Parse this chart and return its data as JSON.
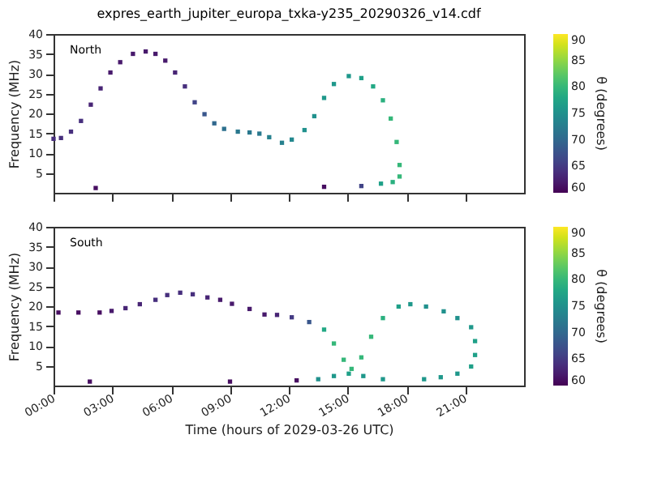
{
  "chart_data": [
    {
      "type": "scatter",
      "title": "expres_earth_jupiter_europa_txka-y235_20290326_v14.cdf",
      "ylabel": "Frequency (MHz)",
      "clabel": "θ (degrees)",
      "annotations": [
        "North"
      ],
      "marker": "square",
      "grid": false,
      "tick_labels": "y",
      "xlim": [
        0,
        24
      ],
      "xticks": [
        0,
        3,
        6,
        9,
        12,
        15,
        18,
        21
      ],
      "ylim": [
        0,
        40
      ],
      "yticks": [
        5,
        10,
        15,
        20,
        25,
        30,
        35,
        40
      ],
      "clim": [
        60,
        90
      ],
      "cticks": [
        60,
        65,
        70,
        75,
        80,
        85,
        90
      ],
      "series": [
        {
          "x": [
            0,
            0.38,
            0.89,
            1.4,
            1.9,
            2.4,
            2.9,
            3.4,
            4.05,
            4.7,
            5.2,
            5.7,
            6.2,
            6.7,
            7.2,
            7.7,
            8.2,
            8.7,
            9.4,
            10.0,
            10.5,
            11.0,
            11.65,
            12.15,
            12.8,
            13.3,
            13.8,
            14.3,
            15.06,
            15.7,
            16.3,
            16.8,
            17.2,
            17.5,
            17.65,
            17.65,
            17.3,
            16.7,
            2.15,
            13.8,
            15.7
          ],
          "values": [
            13.6,
            13.8,
            15.4,
            18.1,
            22.2,
            26.3,
            30.3,
            32.9,
            35.0,
            35.6,
            35.0,
            33.3,
            30.3,
            26.8,
            22.8,
            19.8,
            17.5,
            16.1,
            15.4,
            15.2,
            14.9,
            14.0,
            12.6,
            13.4,
            15.8,
            19.3,
            23.9,
            27.4,
            29.4,
            28.9,
            26.8,
            23.3,
            18.7,
            12.8,
            7.0,
            4.1,
            2.7,
            2.3,
            1.2,
            1.5,
            1.7
          ],
          "cvalues": [
            64,
            64,
            64,
            64,
            63,
            63,
            62,
            62,
            62,
            62,
            62,
            62,
            63,
            64,
            66,
            68,
            70,
            71,
            72,
            72,
            72,
            73,
            73,
            74,
            75,
            75,
            76,
            76,
            76,
            77,
            78,
            79,
            80,
            80,
            80,
            80,
            79,
            77,
            61,
            61,
            66
          ]
        }
      ]
    },
    {
      "type": "scatter",
      "xlabel": "Time (hours of 2029-03-26 UTC)",
      "ylabel": "Frequency (MHz)",
      "clabel": "θ (degrees)",
      "annotations": [
        "South"
      ],
      "marker": "square",
      "grid": false,
      "xlim": [
        0,
        24
      ],
      "xticks": [
        {
          "value": 0,
          "label": "00:00"
        },
        {
          "value": 3,
          "label": "03:00"
        },
        {
          "value": 6,
          "label": "06:00"
        },
        {
          "value": 9,
          "label": "09:00"
        },
        {
          "value": 12,
          "label": "12:00"
        },
        {
          "value": 15,
          "label": "15:00"
        },
        {
          "value": 18,
          "label": "18:00"
        },
        {
          "value": 21,
          "label": "21:00"
        }
      ],
      "ylim": [
        0,
        40
      ],
      "yticks": [
        5,
        10,
        15,
        20,
        25,
        30,
        35,
        40
      ],
      "clim": [
        60,
        90
      ],
      "cticks": [
        60,
        65,
        70,
        75,
        80,
        85,
        90
      ],
      "series": [
        {
          "x": [
            0.25,
            1.27,
            2.35,
            2.96,
            3.67,
            4.4,
            5.2,
            5.8,
            6.46,
            7.1,
            7.85,
            8.5,
            9.1,
            10.0,
            10.76,
            11.4,
            12.15,
            13.04,
            13.8,
            14.3,
            14.8,
            15.2,
            15.7,
            16.2,
            16.8,
            17.6,
            18.2,
            19.0,
            19.9,
            20.6,
            21.3,
            21.5,
            21.5,
            21.3,
            20.6,
            19.75,
            18.9,
            16.8,
            15.8,
            15.06,
            14.3,
            13.5,
            1.85,
            9.0,
            12.4
          ],
          "values": [
            18.4,
            18.4,
            18.4,
            18.8,
            19.5,
            20.5,
            21.6,
            22.8,
            23.4,
            23.0,
            22.2,
            21.6,
            20.6,
            19.3,
            17.9,
            17.8,
            17.2,
            16.0,
            14.1,
            10.6,
            6.5,
            4.2,
            7.1,
            12.3,
            17.0,
            19.9,
            20.5,
            19.9,
            18.7,
            17.0,
            14.7,
            11.2,
            7.7,
            4.8,
            3.0,
            2.1,
            1.6,
            1.6,
            2.4,
            3.0,
            2.4,
            1.6,
            1.0,
            1.0,
            1.3
          ],
          "cvalues": [
            61,
            61,
            61,
            62,
            63,
            63,
            64,
            64,
            64,
            64,
            63,
            62,
            62,
            62,
            62,
            63,
            65,
            68,
            78,
            80,
            80,
            80,
            80,
            80,
            79,
            77,
            76,
            75,
            75,
            75,
            76,
            77,
            77,
            77,
            76,
            76,
            76,
            76,
            76,
            77,
            76,
            75,
            61,
            61,
            61
          ]
        }
      ]
    }
  ]
}
